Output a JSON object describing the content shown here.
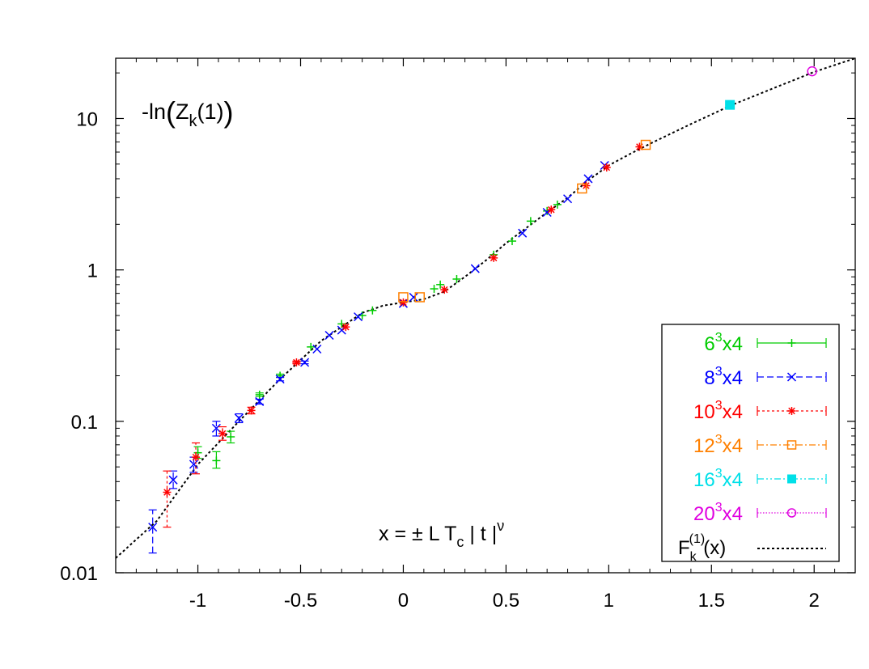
{
  "chart_data": {
    "type": "scatter",
    "title": "",
    "ylabel": "-ln(Z_k(1))",
    "ylabel_parts": {
      "pre": "-ln",
      "lp": "(",
      "z": "Z",
      "sub": "k",
      "arg": "(1)",
      "rp": ")"
    },
    "xlabel": "x = ± L T_c | t |^ν",
    "xlabel_parts": {
      "pre": "x = ",
      "pm": "±",
      "mid": " L T",
      "sub": "c",
      "post": " | t |",
      "sup": "ν"
    },
    "xlim": [
      -1.4,
      2.2
    ],
    "ylim": [
      0.01,
      25
    ],
    "yscale": "log",
    "x_ticks": [
      {
        "v": -1,
        "label": "-1"
      },
      {
        "v": -0.5,
        "label": "-0.5"
      },
      {
        "v": 0,
        "label": "0"
      },
      {
        "v": 0.5,
        "label": "0.5"
      },
      {
        "v": 1,
        "label": "1"
      },
      {
        "v": 1.5,
        "label": "1.5"
      },
      {
        "v": 2,
        "label": "2"
      }
    ],
    "y_ticks": [
      {
        "v": 0.01,
        "label": "0.01"
      },
      {
        "v": 0.1,
        "label": "0.1"
      },
      {
        "v": 1,
        "label": "1"
      },
      {
        "v": 10,
        "label": "10"
      }
    ],
    "grid": false,
    "legend_position": "bottom-right",
    "series": [
      {
        "base": "6",
        "exp": "3",
        "suffix": "x4",
        "color": "#00cc00",
        "marker": "plus",
        "dash": "solid",
        "points": [
          [
            -0.91,
            0.055,
            0.049,
            0.063
          ],
          [
            -0.84,
            0.079,
            0.072,
            0.086
          ],
          [
            -1.0,
            0.062,
            0.057,
            0.068
          ],
          [
            -0.7,
            0.15,
            0.146,
            0.154
          ],
          [
            -0.6,
            0.2,
            0.195,
            0.205
          ],
          [
            -0.45,
            0.31,
            0.305,
            0.315
          ],
          [
            -0.3,
            0.44,
            0.435,
            0.445
          ],
          [
            -0.2,
            0.5,
            0.495,
            0.505
          ],
          [
            -0.15,
            0.54,
            0.535,
            0.545
          ],
          [
            0.15,
            0.75,
            0.745,
            0.755
          ],
          [
            0.18,
            0.8,
            0.795,
            0.805
          ],
          [
            0.26,
            0.87,
            0.865,
            0.875
          ],
          [
            0.44,
            1.26,
            1.25,
            1.27
          ],
          [
            0.53,
            1.55,
            1.54,
            1.56
          ],
          [
            0.62,
            2.1,
            2.09,
            2.11
          ],
          [
            0.7,
            2.45,
            2.44,
            2.46
          ],
          [
            0.75,
            2.7,
            2.69,
            2.71
          ]
        ]
      },
      {
        "base": "8",
        "exp": "3",
        "suffix": "x4",
        "color": "#0000ff",
        "marker": "cross",
        "dash": "dashed",
        "points": [
          [
            -1.22,
            0.02,
            0.0135,
            0.026
          ],
          [
            -1.12,
            0.041,
            0.036,
            0.047
          ],
          [
            -1.02,
            0.052,
            0.046,
            0.058
          ],
          [
            -0.91,
            0.09,
            0.08,
            0.1
          ],
          [
            -0.8,
            0.105,
            0.098,
            0.112
          ],
          [
            -0.7,
            0.135,
            0.13,
            0.14
          ],
          [
            -0.6,
            0.19,
            0.185,
            0.195
          ],
          [
            -0.48,
            0.245,
            0.24,
            0.25
          ],
          [
            -0.42,
            0.3,
            0.295,
            0.305
          ],
          [
            -0.36,
            0.37,
            0.365,
            0.375
          ],
          [
            -0.3,
            0.4,
            0.395,
            0.405
          ],
          [
            -0.22,
            0.49,
            0.485,
            0.495
          ],
          [
            0.0,
            0.6,
            0.595,
            0.605
          ],
          [
            0.05,
            0.66,
            0.655,
            0.665
          ],
          [
            0.35,
            1.02,
            1.01,
            1.03
          ],
          [
            0.58,
            1.75,
            1.74,
            1.76
          ],
          [
            0.7,
            2.4,
            2.39,
            2.41
          ],
          [
            0.8,
            2.95,
            2.94,
            2.96
          ],
          [
            0.9,
            4.0,
            3.98,
            4.02
          ],
          [
            0.98,
            4.9,
            4.88,
            4.92
          ]
        ]
      },
      {
        "base": "10",
        "exp": "3",
        "suffix": "x4",
        "color": "#ff0000",
        "marker": "star",
        "dash": "dotted",
        "points": [
          [
            -1.15,
            0.034,
            0.02,
            0.047
          ],
          [
            -1.01,
            0.058,
            0.045,
            0.072
          ],
          [
            -0.88,
            0.083,
            0.075,
            0.092
          ],
          [
            -0.74,
            0.118,
            0.112,
            0.124
          ],
          [
            -0.52,
            0.245,
            0.24,
            0.25
          ],
          [
            -0.28,
            0.42,
            0.415,
            0.425
          ],
          [
            0.0,
            0.61,
            0.605,
            0.615
          ],
          [
            0.2,
            0.74,
            0.735,
            0.745
          ],
          [
            0.44,
            1.2,
            1.19,
            1.21
          ],
          [
            0.72,
            2.5,
            2.49,
            2.51
          ],
          [
            0.89,
            3.6,
            3.58,
            3.62
          ],
          [
            0.99,
            4.75,
            4.73,
            4.77
          ],
          [
            1.15,
            6.5,
            6.47,
            6.53
          ]
        ]
      },
      {
        "base": "12",
        "exp": "3",
        "suffix": "x4",
        "color": "#ff8000",
        "marker": "square",
        "dash": "dashdot",
        "points": [
          [
            0.0,
            0.66,
            0.655,
            0.665
          ],
          [
            0.08,
            0.66,
            0.655,
            0.665
          ],
          [
            0.87,
            3.45,
            3.43,
            3.47
          ],
          [
            1.18,
            6.7,
            6.67,
            6.73
          ]
        ]
      },
      {
        "base": "16",
        "exp": "3",
        "suffix": "x4",
        "color": "#00e0e8",
        "marker": "filledsquare",
        "dash": "dashdotdot",
        "points": [
          [
            1.59,
            12.3,
            12.25,
            12.35
          ]
        ]
      },
      {
        "base": "20",
        "exp": "3",
        "suffix": "x4",
        "color": "#e000e0",
        "marker": "circle",
        "dash": "finedot",
        "points": [
          [
            1.99,
            20.5,
            20.4,
            20.6
          ]
        ]
      }
    ],
    "fit_curve": {
      "label_base": "F",
      "label_sup": "(1)",
      "label_sub": "k",
      "label_arg": "(x)",
      "color": "#000000",
      "points": [
        [
          -1.4,
          0.0125
        ],
        [
          -1.2,
          0.022
        ],
        [
          -1.0,
          0.052
        ],
        [
          -0.8,
          0.1
        ],
        [
          -0.6,
          0.19
        ],
        [
          -0.4,
          0.34
        ],
        [
          -0.2,
          0.52
        ],
        [
          -0.1,
          0.58
        ],
        [
          0.0,
          0.61
        ],
        [
          0.1,
          0.64
        ],
        [
          0.2,
          0.72
        ],
        [
          0.3,
          0.9
        ],
        [
          0.4,
          1.15
        ],
        [
          0.5,
          1.5
        ],
        [
          0.6,
          1.9
        ],
        [
          0.7,
          2.4
        ],
        [
          0.8,
          3.0
        ],
        [
          0.9,
          3.9
        ],
        [
          1.0,
          4.9
        ],
        [
          1.1,
          5.8
        ],
        [
          1.2,
          6.8
        ],
        [
          1.4,
          9.2
        ],
        [
          1.6,
          12.3
        ],
        [
          1.8,
          15.8
        ],
        [
          2.0,
          20.3
        ],
        [
          2.2,
          25.0
        ]
      ]
    }
  }
}
